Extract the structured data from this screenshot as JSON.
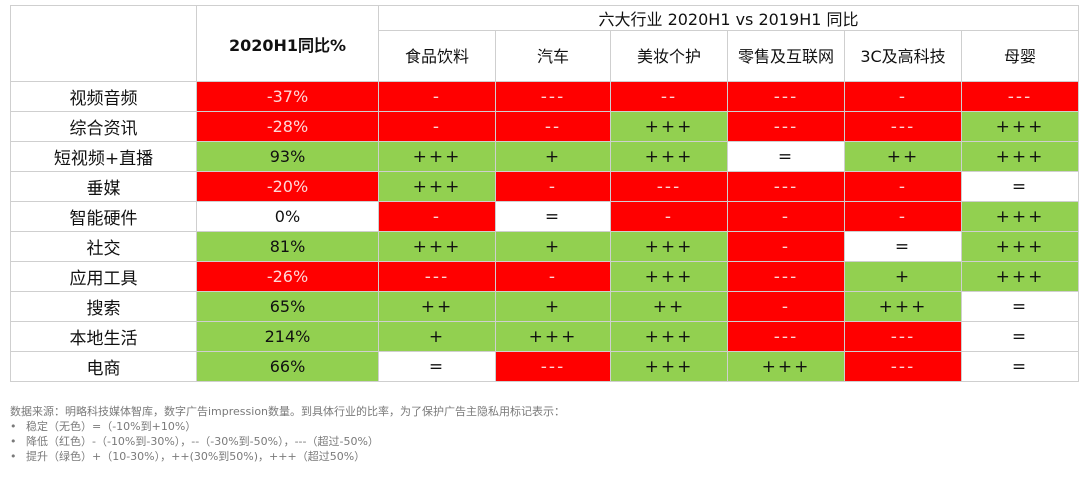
{
  "table": {
    "metric_header": "2020H1同比%",
    "group_header": "六大行业 2020H1 vs 2019H1 同比",
    "industries": [
      "食品饮料",
      "汽车",
      "美妆个护",
      "零售及互联网",
      "3C及高科技",
      "母婴"
    ],
    "rows": [
      {
        "name": "视频音频",
        "pct": "-37%",
        "pct_color": "red",
        "cells": [
          {
            "v": "-",
            "c": "red"
          },
          {
            "v": "---",
            "c": "red"
          },
          {
            "v": "--",
            "c": "red"
          },
          {
            "v": "---",
            "c": "red"
          },
          {
            "v": "-",
            "c": "red"
          },
          {
            "v": "---",
            "c": "red"
          }
        ]
      },
      {
        "name": "综合资讯",
        "pct": "-28%",
        "pct_color": "red",
        "cells": [
          {
            "v": "-",
            "c": "red"
          },
          {
            "v": "--",
            "c": "red"
          },
          {
            "v": "+++",
            "c": "green"
          },
          {
            "v": "---",
            "c": "red"
          },
          {
            "v": "---",
            "c": "red"
          },
          {
            "v": "+++",
            "c": "green"
          }
        ]
      },
      {
        "name": "短视频+直播",
        "pct": "93%",
        "pct_color": "green",
        "cells": [
          {
            "v": "+++",
            "c": "green"
          },
          {
            "v": "+",
            "c": "green"
          },
          {
            "v": "+++",
            "c": "green"
          },
          {
            "v": "=",
            "c": "white"
          },
          {
            "v": "++",
            "c": "green"
          },
          {
            "v": "+++",
            "c": "green"
          }
        ]
      },
      {
        "name": "垂媒",
        "pct": "-20%",
        "pct_color": "red",
        "cells": [
          {
            "v": "+++",
            "c": "green"
          },
          {
            "v": "-",
            "c": "red"
          },
          {
            "v": "---",
            "c": "red"
          },
          {
            "v": "---",
            "c": "red"
          },
          {
            "v": "-",
            "c": "red"
          },
          {
            "v": "=",
            "c": "white"
          }
        ]
      },
      {
        "name": "智能硬件",
        "pct": "0%",
        "pct_color": "white",
        "cells": [
          {
            "v": "-",
            "c": "red"
          },
          {
            "v": "=",
            "c": "white"
          },
          {
            "v": "-",
            "c": "red"
          },
          {
            "v": "-",
            "c": "red"
          },
          {
            "v": "-",
            "c": "red"
          },
          {
            "v": "+++",
            "c": "green"
          }
        ]
      },
      {
        "name": "社交",
        "pct": "81%",
        "pct_color": "green",
        "cells": [
          {
            "v": "+++",
            "c": "green"
          },
          {
            "v": "+",
            "c": "green"
          },
          {
            "v": "+++",
            "c": "green"
          },
          {
            "v": "-",
            "c": "red"
          },
          {
            "v": "=",
            "c": "white"
          },
          {
            "v": "+++",
            "c": "green"
          }
        ]
      },
      {
        "name": "应用工具",
        "pct": "-26%",
        "pct_color": "red",
        "cells": [
          {
            "v": "---",
            "c": "red"
          },
          {
            "v": "-",
            "c": "red"
          },
          {
            "v": "+++",
            "c": "green"
          },
          {
            "v": "---",
            "c": "red"
          },
          {
            "v": "+",
            "c": "green"
          },
          {
            "v": "+++",
            "c": "green"
          }
        ]
      },
      {
        "name": "搜索",
        "pct": "65%",
        "pct_color": "green",
        "cells": [
          {
            "v": "++",
            "c": "green"
          },
          {
            "v": "+",
            "c": "green"
          },
          {
            "v": "++",
            "c": "green"
          },
          {
            "v": "-",
            "c": "red"
          },
          {
            "v": "+++",
            "c": "green"
          },
          {
            "v": "=",
            "c": "white"
          }
        ]
      },
      {
        "name": "本地生活",
        "pct": "214%",
        "pct_color": "green",
        "cells": [
          {
            "v": "+",
            "c": "green"
          },
          {
            "v": "+++",
            "c": "green"
          },
          {
            "v": "+++",
            "c": "green"
          },
          {
            "v": "---",
            "c": "red"
          },
          {
            "v": "---",
            "c": "red"
          },
          {
            "v": "=",
            "c": "white"
          }
        ]
      },
      {
        "name": "电商",
        "pct": "66%",
        "pct_color": "green",
        "cells": [
          {
            "v": "=",
            "c": "white"
          },
          {
            "v": "---",
            "c": "red"
          },
          {
            "v": "+++",
            "c": "green"
          },
          {
            "v": "+++",
            "c": "green"
          },
          {
            "v": "---",
            "c": "red"
          },
          {
            "v": "=",
            "c": "white"
          }
        ]
      }
    ]
  },
  "footnote": {
    "source": "数据来源：明略科技媒体智库，数字广告impression数量。到具体行业的比率，为了保护广告主隐私用标记表示：",
    "bullet_char": "•",
    "items": [
      "稳定（无色）=（-10%到+10%）",
      "降低（红色）-（-10%到-30%），--（-30%到-50%），---（超过-50%）",
      "提升（绿色）+（10-30%），++(30%到50%)，+++（超过50%）"
    ]
  },
  "colors": {
    "red": "#ff0000",
    "green": "#92d050",
    "white": "#ffffff",
    "red_text": "#ffd6d6",
    "border": "#cfcfcf"
  }
}
